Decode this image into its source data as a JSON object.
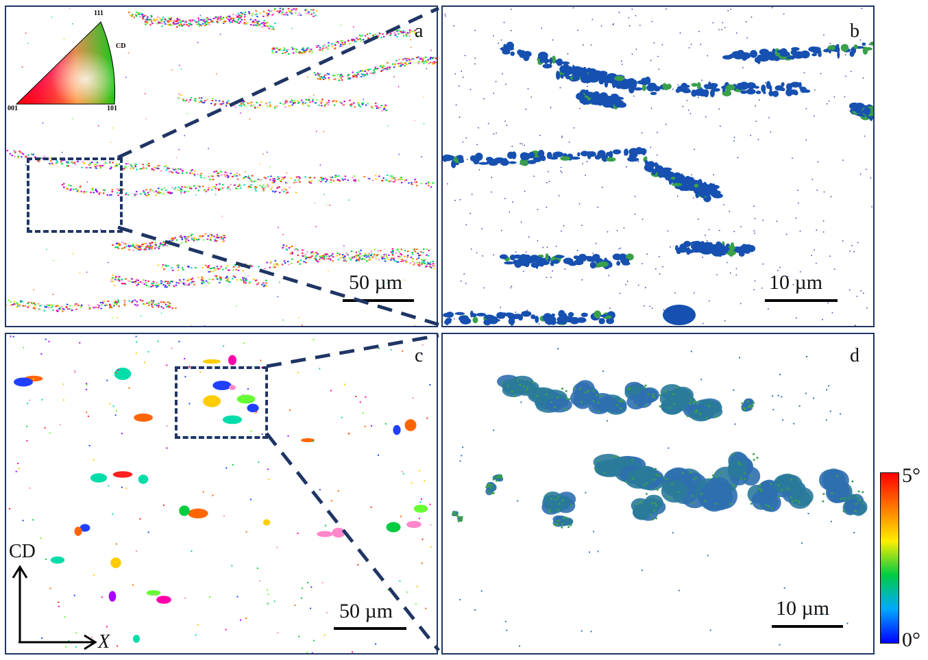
{
  "panels": {
    "a": {
      "label": "a",
      "scale_bar": "50 µm"
    },
    "b": {
      "label": "b",
      "scale_bar": "10 µm"
    },
    "c": {
      "label": "c",
      "scale_bar": "50 µm"
    },
    "d": {
      "label": "d",
      "scale_bar": "10 µm"
    }
  },
  "ipf_key": {
    "top": "111",
    "left": "001",
    "right": "101",
    "direction": "CD"
  },
  "colorbar": {
    "max": "5°",
    "min": "0°",
    "colors": [
      "#0000ff",
      "#00aaff",
      "#00cc44",
      "#ffee00",
      "#ff7700",
      "#ff0000"
    ]
  },
  "axes": {
    "vertical": "CD",
    "horizontal": "X"
  },
  "colors": {
    "frame": "#1f3564",
    "zoom_lines": "#1f3564",
    "grain_blue": "#1650b0",
    "grain_green": "#3aa04a"
  }
}
